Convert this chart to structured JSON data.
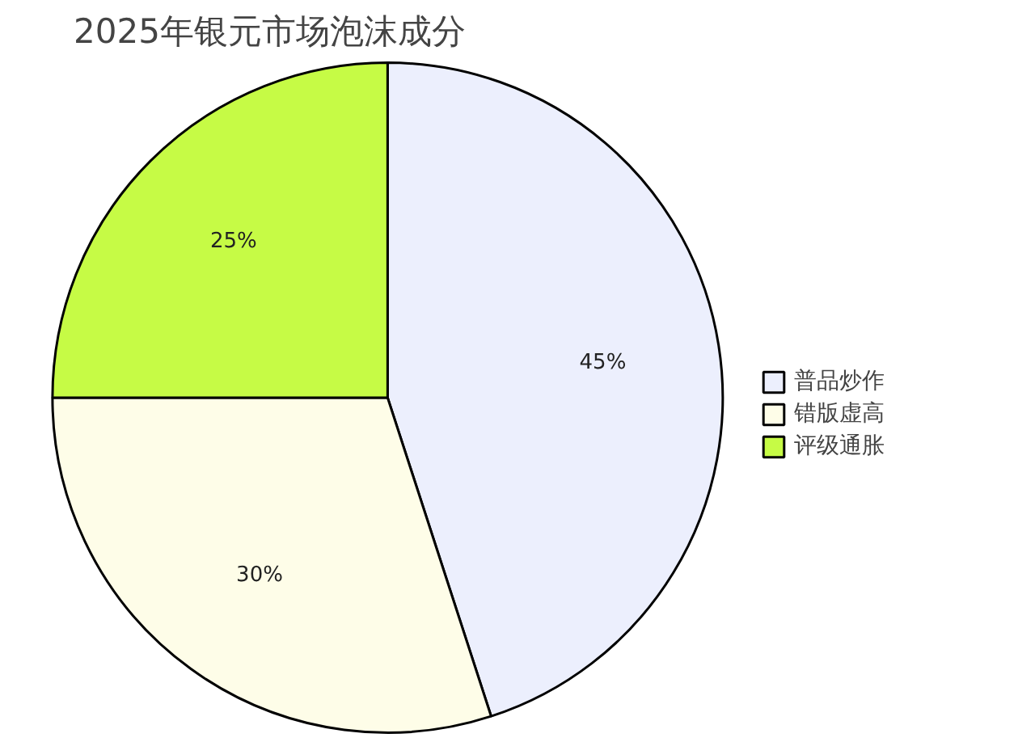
{
  "chart_data": {
    "type": "pie",
    "title": "2025年银元市场泡沫成分",
    "categories": [
      "普品炒作",
      "错版虚高",
      "评级通胀"
    ],
    "values": [
      45,
      30,
      25
    ],
    "colors": [
      "#eceffd",
      "#fefde8",
      "#c6fb45"
    ],
    "value_labels": [
      "45%",
      "30%",
      "25%"
    ],
    "legend": "right"
  }
}
